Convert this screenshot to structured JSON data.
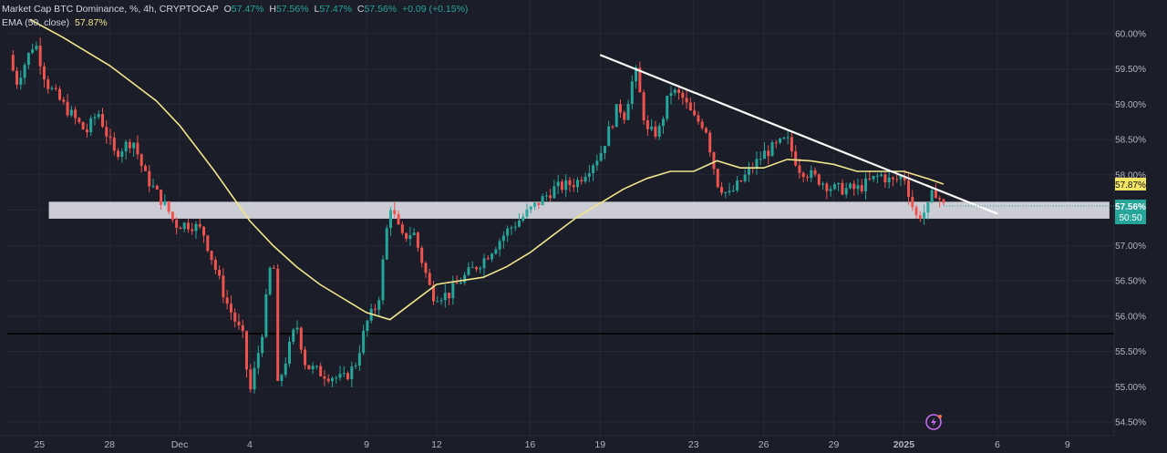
{
  "header": {
    "symbol_line": "Market Cap BTC Dominance, %, 4h, CRYPTOCAP",
    "o_label": "O",
    "o_value": "57.47%",
    "h_label": "H",
    "h_value": "57.56%",
    "l_label": "L",
    "l_value": "57.47%",
    "c_label": "C",
    "c_value": "57.56%",
    "change": "+0.09 (+0.15%)",
    "ema_label": "EMA (50, close)",
    "ema_value": "57.87%"
  },
  "badges": {
    "ema": "57.87%",
    "price": "57.56%",
    "countdown": "50:50"
  },
  "colors": {
    "background": "#1b1d28",
    "up": "#26a69a",
    "down": "#ef5350",
    "ema": "#f0e68c",
    "trendline": "#ffffff",
    "zone": "#e0e0e8",
    "support_line": "#000000"
  },
  "icons": [
    "lightning-icon"
  ],
  "chart_data": {
    "type": "candlestick",
    "interval": "4h",
    "y_unit": "%",
    "ylim": [
      54.4,
      60.5
    ],
    "y_ticks": [
      "60.00%",
      "59.50%",
      "59.00%",
      "58.50%",
      "58.00%",
      "57.50%",
      "57.00%",
      "56.50%",
      "56.00%",
      "55.50%",
      "55.00%",
      "54.50%"
    ],
    "x_ticks": [
      "25",
      "28",
      "Dec",
      "4",
      "9",
      "12",
      "16",
      "19",
      "23",
      "26",
      "29",
      "2025",
      "6",
      "9"
    ],
    "x_tick_days": [
      -6,
      -3,
      0,
      3,
      8,
      11,
      15,
      18,
      22,
      25,
      28,
      31,
      35,
      38
    ],
    "xlim_days": [
      -7.3,
      40
    ],
    "last_day": 32.7,
    "path_days": [
      -7.3,
      -7,
      -6.2,
      -5.7,
      -5,
      -4,
      -3.5,
      -2.8,
      -2,
      -1.5,
      -0.5,
      -0.2,
      0.5,
      1,
      2,
      2.7,
      3,
      3.5,
      4,
      4.2,
      5,
      5.4,
      6,
      7,
      7.5,
      8,
      8.5,
      9,
      9.5,
      10,
      10.8,
      11.5,
      12,
      13,
      14,
      15,
      16,
      17,
      18,
      18.8,
      19,
      19.5,
      20,
      20.5,
      21,
      21.5,
      22,
      22.5,
      23,
      23.5,
      24,
      25,
      26,
      26.5,
      27,
      28,
      29,
      30,
      30.5,
      31,
      31.5,
      32,
      32.3,
      32.7
    ],
    "path_values": [
      59.7,
      59.3,
      59.9,
      59.3,
      59.0,
      58.6,
      58.9,
      58.3,
      58.5,
      58.0,
      57.5,
      57.3,
      57.3,
      57.2,
      56.2,
      55.7,
      54.9,
      55.7,
      57.0,
      55.0,
      55.9,
      55.3,
      55.2,
      55.1,
      55.3,
      55.9,
      56.2,
      57.6,
      57.1,
      57.2,
      56.3,
      56.3,
      56.5,
      56.8,
      57.2,
      57.5,
      57.8,
      57.9,
      58.3,
      59.0,
      58.8,
      59.5,
      58.6,
      58.6,
      59.2,
      59.1,
      58.8,
      58.7,
      57.9,
      57.7,
      57.9,
      58.3,
      58.5,
      58.1,
      58.0,
      57.8,
      57.8,
      58.0,
      57.9,
      58.0,
      57.4,
      57.5,
      57.8,
      57.56
    ],
    "ema_days": [
      -6.4,
      -5,
      -3,
      -1,
      0,
      1.5,
      3,
      4,
      5,
      6,
      7,
      8,
      9,
      10,
      11,
      12,
      13,
      14,
      15,
      16,
      17,
      18,
      19,
      20,
      21,
      22,
      23,
      24,
      25,
      26,
      27,
      28,
      29,
      30,
      31,
      32,
      32.7
    ],
    "ema_values": [
      60.2,
      59.95,
      59.55,
      59.05,
      58.7,
      58.05,
      57.35,
      57.0,
      56.7,
      56.45,
      56.25,
      56.05,
      55.95,
      56.2,
      56.45,
      56.5,
      56.55,
      56.7,
      56.9,
      57.15,
      57.4,
      57.6,
      57.8,
      57.95,
      58.05,
      58.05,
      58.2,
      58.1,
      58.1,
      58.22,
      58.2,
      58.15,
      58.05,
      58.05,
      58.05,
      57.95,
      57.87
    ],
    "trendline": {
      "days": [
        18,
        35
      ],
      "values": [
        59.7,
        57.45
      ]
    },
    "zone": {
      "days": [
        -5.6,
        39.8
      ],
      "low": 57.38,
      "high": 57.62
    },
    "support_line": {
      "value": 55.75
    }
  }
}
